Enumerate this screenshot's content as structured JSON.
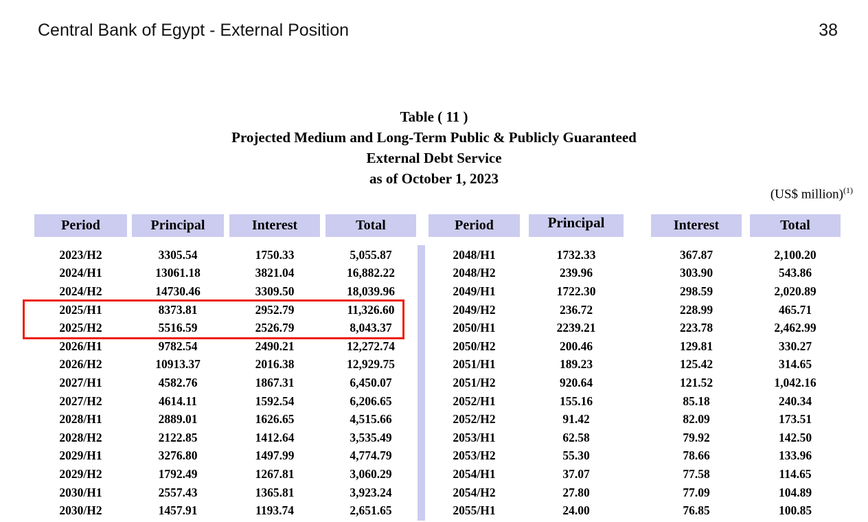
{
  "page": {
    "header_title": "Central Bank of Egypt - External Position",
    "page_number": "38"
  },
  "title_block": {
    "line1": "Table ( 11 )",
    "line2": "Projected Medium and Long-Term Public & Publicly Guaranteed",
    "line3": "External Debt Service",
    "line4": "as of October 1, 2023"
  },
  "units_note": {
    "text": "(US$ million)",
    "footnote_ref": "(1)"
  },
  "colors": {
    "header_cell_background": "#ccccf0",
    "highlight_border": "#ee1c0d",
    "text": "#000000"
  },
  "highlight": {
    "table": "left",
    "periods": [
      "2025/H1",
      "2025/H2"
    ],
    "color": "#ee1c0d"
  },
  "tables": [
    {
      "headers": [
        "Period",
        "Principal",
        "Interest",
        "Total"
      ],
      "rows": [
        [
          "2023/H2",
          "3305.54",
          "1750.33",
          "5,055.87"
        ],
        [
          "2024/H1",
          "13061.18",
          "3821.04",
          "16,882.22"
        ],
        [
          "2024/H2",
          "14730.46",
          "3309.50",
          "18,039.96"
        ],
        [
          "2025/H1",
          "8373.81",
          "2952.79",
          "11,326.60"
        ],
        [
          "2025/H2",
          "5516.59",
          "2526.79",
          "8,043.37"
        ],
        [
          "2026/H1",
          "9782.54",
          "2490.21",
          "12,272.74"
        ],
        [
          "2026/H2",
          "10913.37",
          "2016.38",
          "12,929.75"
        ],
        [
          "2027/H1",
          "4582.76",
          "1867.31",
          "6,450.07"
        ],
        [
          "2027/H2",
          "4614.11",
          "1592.54",
          "6,206.65"
        ],
        [
          "2028/H1",
          "2889.01",
          "1626.65",
          "4,515.66"
        ],
        [
          "2028/H2",
          "2122.85",
          "1412.64",
          "3,535.49"
        ],
        [
          "2029/H1",
          "3276.80",
          "1497.99",
          "4,774.79"
        ],
        [
          "2029/H2",
          "1792.49",
          "1267.81",
          "3,060.29"
        ],
        [
          "2030/H1",
          "2557.43",
          "1365.81",
          "3,923.24"
        ],
        [
          "2030/H2",
          "1457.91",
          "1193.74",
          "2,651.65"
        ]
      ]
    },
    {
      "headers": [
        "Period",
        "Principal",
        "Interest",
        "Total"
      ],
      "rows": [
        [
          "2048/H1",
          "1732.33",
          "367.87",
          "2,100.20"
        ],
        [
          "2048/H2",
          "239.96",
          "303.90",
          "543.86"
        ],
        [
          "2049/H1",
          "1722.30",
          "298.59",
          "2,020.89"
        ],
        [
          "2049/H2",
          "236.72",
          "228.99",
          "465.71"
        ],
        [
          "2050/H1",
          "2239.21",
          "223.78",
          "2,462.99"
        ],
        [
          "2050/H2",
          "200.46",
          "129.81",
          "330.27"
        ],
        [
          "2051/H1",
          "189.23",
          "125.42",
          "314.65"
        ],
        [
          "2051/H2",
          "920.64",
          "121.52",
          "1,042.16"
        ],
        [
          "2052/H1",
          "155.16",
          "85.18",
          "240.34"
        ],
        [
          "2052/H2",
          "91.42",
          "82.09",
          "173.51"
        ],
        [
          "2053/H1",
          "62.58",
          "79.92",
          "142.50"
        ],
        [
          "2053/H2",
          "55.30",
          "78.66",
          "133.96"
        ],
        [
          "2054/H1",
          "37.07",
          "77.58",
          "114.65"
        ],
        [
          "2054/H2",
          "27.80",
          "77.09",
          "104.89"
        ],
        [
          "2055/H1",
          "24.00",
          "76.85",
          "100.85"
        ]
      ]
    }
  ]
}
